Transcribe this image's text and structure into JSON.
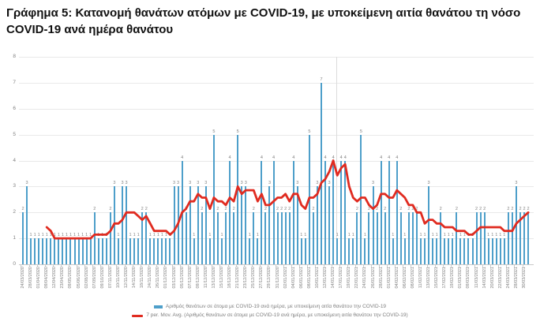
{
  "title": "Γράφημα 5: Κατανομή θανάτων ατόμων με COVID-19, με υποκείμενη αιτία θανάτου τη νόσο COVID-19 ανά ημέρα θανάτου",
  "colors": {
    "bar": "#4E9FCA",
    "moving_average_line": "#E02B20",
    "gridline": "#e9e9e9",
    "axis_text": "#7f7f7f",
    "title_text": "#111111"
  },
  "legend": {
    "bars_label": "Αριθμός θανάτων σε άτομα με COVID-19 ανά ημέρα, με υποκείμενη αιτία θανάτου την COVID-19",
    "line_label": "7 per. Mov. Avg. (Αριθμός θανάτων σε άτομα με COVID-19 ανά ημέρα, με υποκείμενη αιτία θανάτου την COVID-19)"
  },
  "chart_data": {
    "type": "bar",
    "title": "Γράφημα 5: Κατανομή θανάτων ατόμων με COVID-19, με υποκείμενη αιτία θανάτου τη νόσο COVID-19 ανά ημέρα θανάτου",
    "xlabel": "",
    "ylabel": "",
    "ylim": [
      0,
      8
    ],
    "y_ticks": [
      0,
      1,
      2,
      3,
      4,
      5,
      6,
      7,
      8
    ],
    "grid": true,
    "legend_position": "bottom",
    "data_labels": true,
    "x_tick_every": 2,
    "x_tick_labels": [
      "24/03/2020",
      "28/03/2020",
      "01/04/2020",
      "09/04/2020",
      "12/04/2020",
      "23/04/2020",
      "09/05/2020",
      "05/06/2020",
      "02/08/2020",
      "07/09/2020",
      "09/10/2020",
      "07/11/2020",
      "10/11/2020",
      "12/11/2020",
      "14/11/2020",
      "18/11/2020",
      "24/11/2020",
      "26/11/2020",
      "01/12/2020",
      "03/12/2020",
      "05/12/2020",
      "07/12/2020",
      "09/12/2020",
      "11/12/2020",
      "13/12/2020",
      "15/12/2020",
      "18/12/2020",
      "21/12/2020",
      "23/12/2020",
      "25/12/2020",
      "27/12/2020",
      "29/12/2020",
      "31/12/2020",
      "02/01/2021",
      "04/01/2021",
      "06/01/2021",
      "08/01/2021",
      "10/01/2021",
      "12/01/2021",
      "14/01/2021",
      "17/01/2021",
      "19/01/2021",
      "22/01/2021",
      "24/01/2021",
      "26/01/2021",
      "28/01/2021",
      "01/02/2021",
      "04/02/2021",
      "06/02/2021",
      "08/02/2021",
      "11/02/2021",
      "13/02/2021",
      "15/02/2021",
      "17/02/2021",
      "19/02/2021",
      "01/03/2021",
      "09/03/2021",
      "11/03/2021",
      "14/03/2021",
      "20/03/2021",
      "22/03/2021",
      "24/03/2021",
      "28/03/2021",
      "30/03/2021"
    ],
    "series": [
      {
        "name": "Αριθμός θανάτων σε άτομα με COVID-19 ανά ημέρα, με υποκείμενη αιτία θανάτου την COVID-19",
        "type": "bar",
        "color": "#4E9FCA",
        "values": [
          2,
          3,
          1,
          1,
          1,
          1,
          1,
          1,
          1,
          1,
          1,
          1,
          1,
          1,
          1,
          1,
          1,
          1,
          2,
          1,
          1,
          1,
          2,
          3,
          1,
          3,
          3,
          1,
          1,
          1,
          2,
          2,
          1,
          1,
          1,
          1,
          1,
          1,
          3,
          3,
          4,
          2,
          3,
          1,
          3,
          2,
          3,
          1,
          5,
          2,
          1,
          2,
          4,
          2,
          5,
          3,
          3,
          1,
          2,
          1,
          4,
          2,
          3,
          4,
          2,
          2,
          2,
          2,
          4,
          3,
          1,
          1,
          5,
          2,
          3,
          7,
          4,
          3,
          4,
          1,
          4,
          4,
          1,
          1,
          2,
          5,
          1,
          2,
          3,
          2,
          4,
          2,
          4,
          1,
          4,
          2,
          1,
          2,
          2,
          2,
          1,
          1,
          3,
          1,
          1,
          2,
          1,
          1,
          1,
          2,
          1,
          1,
          1,
          1,
          2,
          2,
          2,
          1,
          1,
          1,
          1,
          1,
          2,
          2,
          3,
          2,
          2,
          2
        ]
      },
      {
        "name": "7 per. Mov. Avg. (Αριθμός θανάτων σε άτομα με COVID-19 ανά ημέρα, με υποκείμενη αιτία θανάτου την COVID-19)",
        "type": "line",
        "color": "#E02B20",
        "derived_from": "trailing 7-period moving average of the bar series"
      }
    ]
  }
}
